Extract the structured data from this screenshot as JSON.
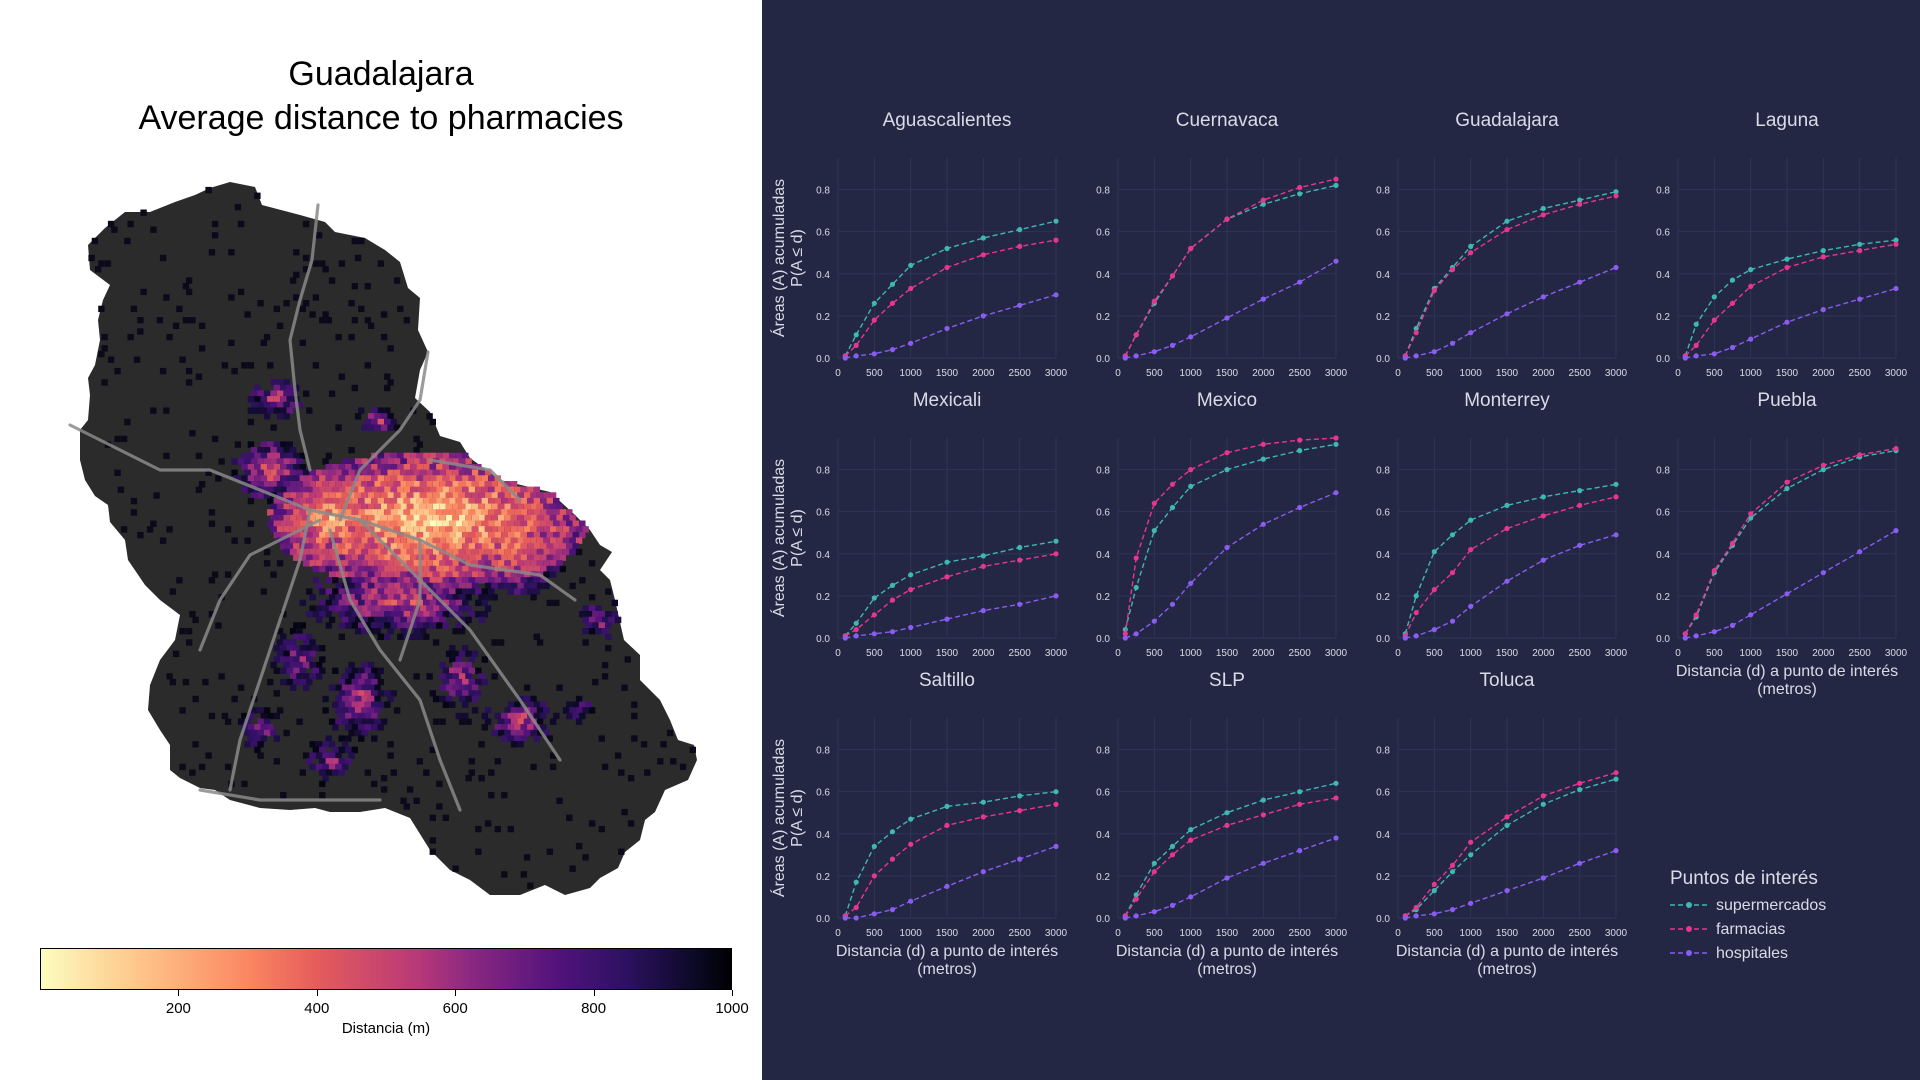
{
  "map": {
    "title_line1": "Guadalajara",
    "title_line2": "Average distance to pharmacies",
    "colorbar": {
      "label": "Distancia (m)",
      "ticks": [
        "200",
        "400",
        "600",
        "800",
        "1000"
      ],
      "range": [
        0,
        1000
      ],
      "palette": "magma_r"
    }
  },
  "colors": {
    "supermercados": "#3fb8b0",
    "farmacias": "#e8368f",
    "hospitales": "#8a5cf0",
    "panel_bg": "#232744",
    "text": "#d9dbe6"
  },
  "chart_data": {
    "type": "line",
    "x_label": "Distancia (d) a punto de interés (metros)",
    "y_label_line1": "Áreas (A) acumuladas",
    "y_label_line2": "P(A ≤ d)",
    "x_ticks": [
      0,
      500,
      1000,
      1500,
      2000,
      2500,
      3000
    ],
    "y_ticks": [
      0.0,
      0.2,
      0.4,
      0.6,
      0.8
    ],
    "ylim": [
      0,
      0.95
    ],
    "xlim": [
      0,
      3000
    ],
    "x": [
      100,
      250,
      500,
      750,
      1000,
      1500,
      2000,
      2500,
      3000
    ],
    "legend": {
      "title": "Puntos de interés",
      "items": [
        "supermercados",
        "farmacias",
        "hospitales"
      ]
    },
    "facets": [
      {
        "name": "Aguascalientes",
        "supermercados": [
          0.01,
          0.11,
          0.26,
          0.35,
          0.44,
          0.52,
          0.57,
          0.61,
          0.65
        ],
        "farmacias": [
          0.01,
          0.06,
          0.18,
          0.26,
          0.33,
          0.43,
          0.49,
          0.53,
          0.56
        ],
        "hospitales": [
          0.0,
          0.01,
          0.02,
          0.04,
          0.07,
          0.14,
          0.2,
          0.25,
          0.3
        ]
      },
      {
        "name": "Cuernavaca",
        "supermercados": [
          0.01,
          0.11,
          0.26,
          0.39,
          0.52,
          0.66,
          0.73,
          0.78,
          0.82
        ],
        "farmacias": [
          0.01,
          0.11,
          0.27,
          0.39,
          0.52,
          0.66,
          0.75,
          0.81,
          0.85
        ],
        "hospitales": [
          0.0,
          0.01,
          0.03,
          0.06,
          0.1,
          0.19,
          0.28,
          0.36,
          0.46
        ]
      },
      {
        "name": "Guadalajara",
        "supermercados": [
          0.01,
          0.14,
          0.33,
          0.43,
          0.53,
          0.65,
          0.71,
          0.75,
          0.79
        ],
        "farmacias": [
          0.01,
          0.12,
          0.32,
          0.42,
          0.5,
          0.61,
          0.68,
          0.73,
          0.77
        ],
        "hospitales": [
          0.0,
          0.01,
          0.03,
          0.07,
          0.12,
          0.21,
          0.29,
          0.36,
          0.43
        ]
      },
      {
        "name": "Laguna",
        "supermercados": [
          0.01,
          0.16,
          0.29,
          0.37,
          0.42,
          0.47,
          0.51,
          0.54,
          0.56
        ],
        "farmacias": [
          0.01,
          0.06,
          0.18,
          0.26,
          0.34,
          0.43,
          0.48,
          0.51,
          0.54
        ],
        "hospitales": [
          0.0,
          0.01,
          0.02,
          0.05,
          0.09,
          0.17,
          0.23,
          0.28,
          0.33
        ]
      },
      {
        "name": "Mexicali",
        "supermercados": [
          0.01,
          0.07,
          0.19,
          0.25,
          0.3,
          0.36,
          0.39,
          0.43,
          0.46
        ],
        "farmacias": [
          0.01,
          0.04,
          0.11,
          0.18,
          0.23,
          0.29,
          0.34,
          0.37,
          0.4
        ],
        "hospitales": [
          0.0,
          0.01,
          0.02,
          0.03,
          0.05,
          0.09,
          0.13,
          0.16,
          0.2
        ]
      },
      {
        "name": "Mexico",
        "supermercados": [
          0.04,
          0.24,
          0.51,
          0.62,
          0.72,
          0.8,
          0.85,
          0.89,
          0.92
        ],
        "farmacias": [
          0.02,
          0.38,
          0.64,
          0.73,
          0.8,
          0.88,
          0.92,
          0.94,
          0.95
        ],
        "hospitales": [
          0.0,
          0.02,
          0.08,
          0.16,
          0.26,
          0.43,
          0.54,
          0.62,
          0.69
        ]
      },
      {
        "name": "Monterrey",
        "supermercados": [
          0.02,
          0.2,
          0.41,
          0.49,
          0.56,
          0.63,
          0.67,
          0.7,
          0.73
        ],
        "farmacias": [
          0.01,
          0.12,
          0.23,
          0.31,
          0.42,
          0.52,
          0.58,
          0.63,
          0.67
        ],
        "hospitales": [
          0.0,
          0.01,
          0.04,
          0.08,
          0.15,
          0.27,
          0.37,
          0.44,
          0.49
        ]
      },
      {
        "name": "Puebla",
        "supermercados": [
          0.02,
          0.1,
          0.31,
          0.44,
          0.57,
          0.71,
          0.8,
          0.86,
          0.89
        ],
        "farmacias": [
          0.02,
          0.11,
          0.32,
          0.45,
          0.59,
          0.74,
          0.82,
          0.87,
          0.9
        ],
        "hospitales": [
          0.0,
          0.01,
          0.03,
          0.06,
          0.11,
          0.21,
          0.31,
          0.41,
          0.51
        ]
      },
      {
        "name": "Saltillo",
        "supermercados": [
          0.01,
          0.17,
          0.34,
          0.41,
          0.47,
          0.53,
          0.55,
          0.58,
          0.6
        ],
        "farmacias": [
          0.01,
          0.05,
          0.2,
          0.28,
          0.35,
          0.44,
          0.48,
          0.51,
          0.54
        ],
        "hospitales": [
          0.0,
          0.0,
          0.02,
          0.04,
          0.08,
          0.15,
          0.22,
          0.28,
          0.34
        ]
      },
      {
        "name": "SLP",
        "supermercados": [
          0.01,
          0.11,
          0.26,
          0.34,
          0.42,
          0.5,
          0.56,
          0.6,
          0.64
        ],
        "farmacias": [
          0.01,
          0.09,
          0.22,
          0.3,
          0.37,
          0.44,
          0.49,
          0.54,
          0.57
        ],
        "hospitales": [
          0.0,
          0.01,
          0.03,
          0.06,
          0.1,
          0.19,
          0.26,
          0.32,
          0.38
        ]
      },
      {
        "name": "Toluca",
        "supermercados": [
          0.01,
          0.04,
          0.13,
          0.22,
          0.3,
          0.44,
          0.54,
          0.61,
          0.66
        ],
        "farmacias": [
          0.01,
          0.05,
          0.16,
          0.25,
          0.36,
          0.48,
          0.58,
          0.64,
          0.69
        ],
        "hospitales": [
          0.0,
          0.01,
          0.02,
          0.04,
          0.07,
          0.13,
          0.19,
          0.26,
          0.32
        ]
      }
    ]
  }
}
